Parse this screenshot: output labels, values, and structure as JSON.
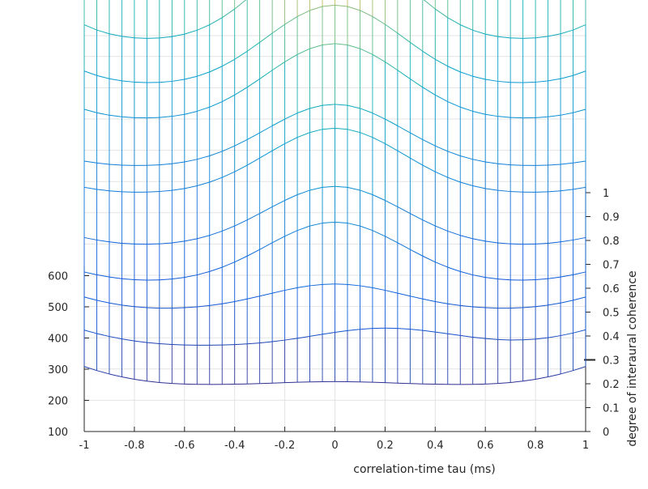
{
  "chart_data": {
    "type": "line",
    "subtype": "3d-waterfall-mesh",
    "title": "",
    "xlabel": "correlation-time tau (ms)",
    "ylabel": "degree of interaural coherence",
    "zlabel": "",
    "grid": true,
    "colormap": "parula",
    "x_ticks": [
      "-1",
      "-0.8",
      "-0.6",
      "-0.4",
      "-0.2",
      "0",
      "0.2",
      "0.4",
      "0.6",
      "0.8",
      "1"
    ],
    "xlim": [
      -1,
      1
    ],
    "y_ticks": [
      "0",
      "0.1",
      "0.2",
      "0.3",
      "0.4",
      "0.5",
      "0.6",
      "0.7",
      "0.8",
      "0.9",
      "1"
    ],
    "ylim": [
      0,
      1
    ],
    "z_ticks": [
      "100",
      "200",
      "300",
      "400",
      "500",
      "600"
    ],
    "zlim": [
      100,
      900
    ],
    "series": [
      {
        "coherence": 0.0,
        "peak_z": 260,
        "peak_tau": 0.0,
        "edge_z": 310,
        "trough_z": 245,
        "trough_tau": 0.6
      },
      {
        "coherence": 0.1,
        "peak_z": 355,
        "peak_tau": 0.2,
        "edge_z": 350,
        "trough_z": 295,
        "trough_tau": 0.6
      },
      {
        "coherence": 0.2,
        "peak_z": 420,
        "peak_tau": 0.0,
        "edge_z": 382,
        "trough_z": 330,
        "trough_tau": 0.7
      },
      {
        "coherence": 0.3,
        "peak_z": 542,
        "peak_tau": 0.0,
        "edge_z": 385,
        "trough_z": 340,
        "trough_tau": 0.7
      },
      {
        "coherence": 0.4,
        "peak_z": 580,
        "peak_tau": 0.0,
        "edge_z": 420,
        "trough_z": 380,
        "trough_tau": 0.75
      },
      {
        "coherence": 0.5,
        "peak_z": 690,
        "peak_tau": 0.0,
        "edge_z": 508,
        "trough_z": 470,
        "trough_tau": 0.85
      },
      {
        "coherence": 0.6,
        "peak_z": 690,
        "peak_tau": 0.0,
        "edge_z": 515,
        "trough_z": 480,
        "trough_tau": 0.85
      },
      {
        "coherence": 0.7,
        "peak_z": 808,
        "peak_tau": 0.0,
        "edge_z": 610,
        "trough_z": 548,
        "trough_tau": 0.85
      },
      {
        "coherence": 0.8,
        "peak_z": 855,
        "peak_tau": 0.0,
        "edge_z": 660,
        "trough_z": 580,
        "trough_tau": 0.85
      },
      {
        "coherence": 0.9,
        "peak_z": 983,
        "peak_tau": 0.0,
        "edge_z": 735,
        "trough_z": 640,
        "trough_tau": 0.85
      },
      {
        "coherence": 1.0,
        "peak_z": 1082,
        "peak_tau": 0.0,
        "edge_z": 785,
        "trough_z": 730,
        "trough_tau": 0.85
      }
    ]
  }
}
